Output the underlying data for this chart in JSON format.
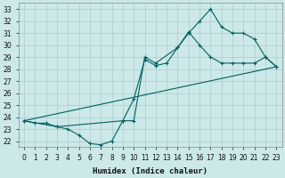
{
  "xlabel": "Humidex (Indice chaleur)",
  "background_color": "#cce8e8",
  "grid_color": "#aacccc",
  "line_color": "#006060",
  "xlim": [
    -0.5,
    23.5
  ],
  "ylim": [
    21.5,
    33.5
  ],
  "xticks": [
    0,
    1,
    2,
    3,
    4,
    5,
    6,
    7,
    8,
    9,
    10,
    11,
    12,
    13,
    14,
    15,
    16,
    17,
    18,
    19,
    20,
    21,
    22,
    23
  ],
  "yticks": [
    22,
    23,
    24,
    25,
    26,
    27,
    28,
    29,
    30,
    31,
    32,
    33
  ],
  "line1_x": [
    0,
    1,
    2,
    3,
    4,
    5,
    6,
    7,
    8,
    9,
    10,
    11,
    12,
    13,
    14,
    15,
    16,
    17,
    18,
    19,
    20,
    21,
    22,
    23
  ],
  "line1_y": [
    23.7,
    23.5,
    23.5,
    23.2,
    23.0,
    22.5,
    21.8,
    21.7,
    22.0,
    23.7,
    25.5,
    28.8,
    28.3,
    28.5,
    29.8,
    31.1,
    30.0,
    29.0,
    28.5,
    28.5,
    28.5,
    28.5,
    29.0,
    28.2
  ],
  "line2_x": [
    0,
    3,
    9,
    10,
    11,
    12,
    14,
    15,
    16,
    17,
    18,
    19,
    20,
    21,
    22,
    23
  ],
  "line2_y": [
    23.7,
    23.2,
    23.7,
    23.7,
    29.0,
    28.5,
    29.8,
    31.0,
    32.0,
    33.0,
    31.5,
    31.0,
    31.0,
    30.5,
    29.0,
    28.2
  ],
  "line3_x": [
    0,
    23
  ],
  "line3_y": [
    23.7,
    28.2
  ],
  "figsize": [
    3.2,
    2.0
  ],
  "dpi": 100
}
